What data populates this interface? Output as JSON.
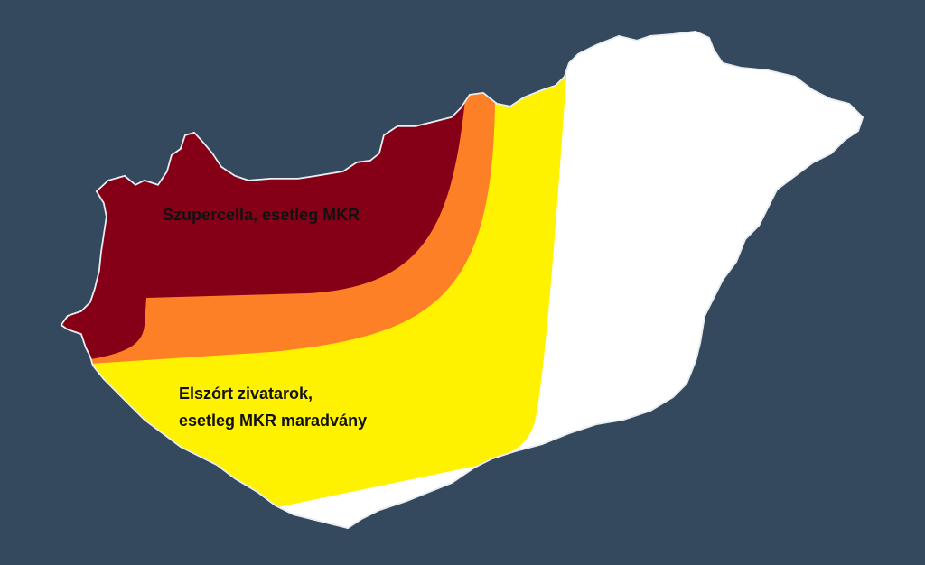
{
  "colors": {
    "background": "#34495e",
    "country": "#ffffff",
    "zone_supercell": "#850017",
    "zone_transition": "#fd7f26",
    "zone_scattered": "#fff200"
  },
  "labels": {
    "supercell_zone": "Szupercella, esetleg MKR",
    "scattered_zone_line1": "Elszórt zivatarok,",
    "scattered_zone_line2": "esetleg MKR maradvány"
  }
}
